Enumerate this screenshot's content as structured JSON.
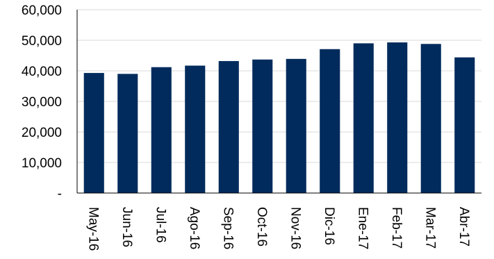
{
  "chart_data": {
    "type": "bar",
    "title": "",
    "xlabel": "",
    "ylabel": "",
    "categories": [
      "May-16",
      "Jun-16",
      "Jul-16",
      "Ago-16",
      "Sep-16",
      "Oct-16",
      "Nov-16",
      "Dic-16",
      "Ene-17",
      "Feb-17",
      "Mar-17",
      "Abr-17"
    ],
    "values": [
      39300,
      39000,
      41200,
      41700,
      43200,
      43700,
      43900,
      47100,
      49000,
      49300,
      48800,
      44400
    ],
    "ylim": [
      0,
      60000
    ],
    "yticks": [
      0,
      10000,
      20000,
      30000,
      40000,
      50000,
      60000
    ],
    "ytick_labels": [
      "-",
      "10,000",
      "20,000",
      "30,000",
      "40,000",
      "50,000",
      "60,000"
    ],
    "grid": true,
    "bar_color": "#002b5c"
  }
}
